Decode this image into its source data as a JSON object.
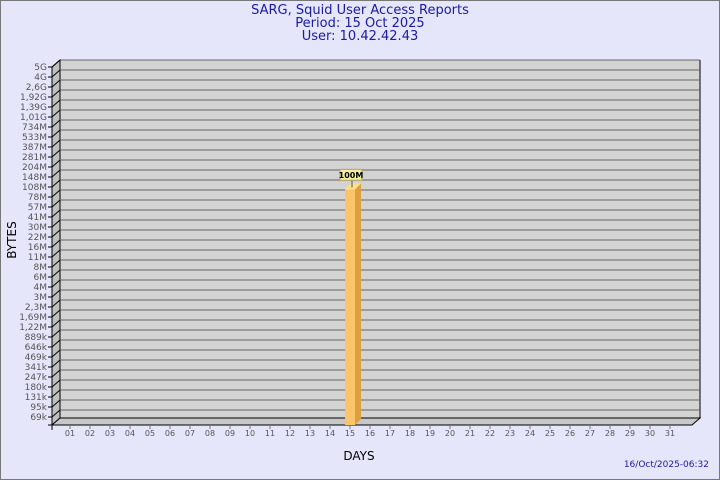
{
  "header": {
    "title": "SARG, Squid User Access Reports",
    "period": "Period: 15 Oct 2025",
    "user": "User: 10.42.42.43"
  },
  "footer": {
    "timestamp": "16/Oct/2025-06:32"
  },
  "colors": {
    "background": "#e6e6fa",
    "plot": "#d3d3d3",
    "bar_front": "#fcc46a",
    "bar_side": "#dca040",
    "title": "#1a1aa6"
  },
  "chart_data": {
    "type": "bar",
    "style": "3d",
    "xlabel": "DAYS",
    "ylabel": "BYTES",
    "yscale": "log",
    "grid": true,
    "yticks": [
      "5G",
      "4G",
      "2,6G",
      "1,92G",
      "1,39G",
      "1,01G",
      "734M",
      "533M",
      "387M",
      "281M",
      "204M",
      "148M",
      "108M",
      "78M",
      "57M",
      "41M",
      "30M",
      "22M",
      "16M",
      "11M",
      "8M",
      "6M",
      "4M",
      "3M",
      "2,3M",
      "1,69M",
      "1,22M",
      "889k",
      "646k",
      "469k",
      "341k",
      "247k",
      "180k",
      "131k",
      "95k",
      "69k"
    ],
    "categories": [
      "01",
      "02",
      "03",
      "04",
      "05",
      "06",
      "07",
      "08",
      "09",
      "10",
      "11",
      "12",
      "13",
      "14",
      "15",
      "16",
      "17",
      "18",
      "19",
      "20",
      "21",
      "22",
      "23",
      "24",
      "25",
      "26",
      "27",
      "28",
      "29",
      "30",
      "31"
    ],
    "bars": [
      {
        "day": "15",
        "value": "100M",
        "label": "100M"
      }
    ]
  }
}
